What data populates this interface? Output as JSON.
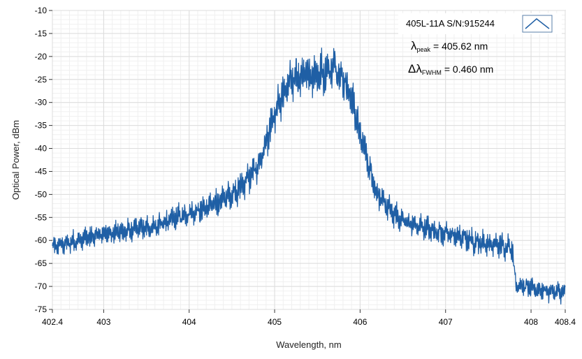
{
  "chart_data": {
    "type": "line",
    "xlabel": "Wavelength, nm",
    "ylabel": "Optical Power, dBm",
    "xlim": [
      402.4,
      408.4
    ],
    "ylim": [
      -75,
      -10
    ],
    "x_ticks": [
      402.4,
      403,
      404,
      405,
      406,
      407,
      408,
      408.4
    ],
    "x_tick_labels": [
      "402.4",
      "403",
      "404",
      "405",
      "406",
      "407",
      "408",
      "408.4"
    ],
    "y_ticks": [
      -10,
      -15,
      -20,
      -25,
      -30,
      -35,
      -40,
      -45,
      -50,
      -55,
      -60,
      -65,
      -70,
      -75
    ],
    "y_tick_labels": [
      "-10",
      "-15",
      "-20",
      "-25",
      "-30",
      "-35",
      "-40",
      "-45",
      "-50",
      "-55",
      "-60",
      "-65",
      "-70",
      "-75"
    ],
    "grid": true,
    "legend_position": "top-right",
    "series": [
      {
        "name": "405L-11A S/N:915244",
        "color": "#1f5fa5",
        "envelope": {
          "x": [
            402.4,
            402.6,
            402.8,
            403.0,
            403.2,
            403.4,
            403.6,
            403.8,
            404.0,
            404.2,
            404.4,
            404.6,
            404.8,
            404.9,
            405.0,
            405.1,
            405.2,
            405.4,
            405.6,
            405.7,
            405.8,
            405.9,
            406.0,
            406.1,
            406.2,
            406.4,
            406.6,
            406.8,
            407.0,
            407.2,
            407.4,
            407.6,
            407.78,
            407.82,
            408.0,
            408.2,
            408.4
          ],
          "center": [
            -61.5,
            -60.5,
            -59.5,
            -58.5,
            -58.2,
            -57.5,
            -57,
            -55.5,
            -54,
            -53,
            -51,
            -48.5,
            -44,
            -39,
            -33,
            -28,
            -25,
            -24,
            -23.5,
            -22,
            -24.5,
            -29,
            -37,
            -43.5,
            -50,
            -54.5,
            -56.5,
            -57.5,
            -58.5,
            -59.5,
            -60.5,
            -61,
            -61.5,
            -69.5,
            -70.5,
            -71,
            -71.5
          ],
          "ripple": [
            2.2,
            2.3,
            2.4,
            2.4,
            2.5,
            2.5,
            2.6,
            2.7,
            2.8,
            3.0,
            3.2,
            3.4,
            3.5,
            3.8,
            4.2,
            4.5,
            4.6,
            4.6,
            4.6,
            4.5,
            4.5,
            4.3,
            4.0,
            3.5,
            3.0,
            2.8,
            2.7,
            2.7,
            2.7,
            2.7,
            2.7,
            2.7,
            2.7,
            2.3,
            2.3,
            2.2,
            2.2
          ]
        }
      }
    ],
    "annotations": {
      "peak_symbol": "λ",
      "peak_subscript": "peak",
      "peak_value": "= 405.62 nm",
      "fwhm_symbol": "Δλ",
      "fwhm_subscript": "FWHM",
      "fwhm_value": "= 0.460 nm"
    }
  }
}
